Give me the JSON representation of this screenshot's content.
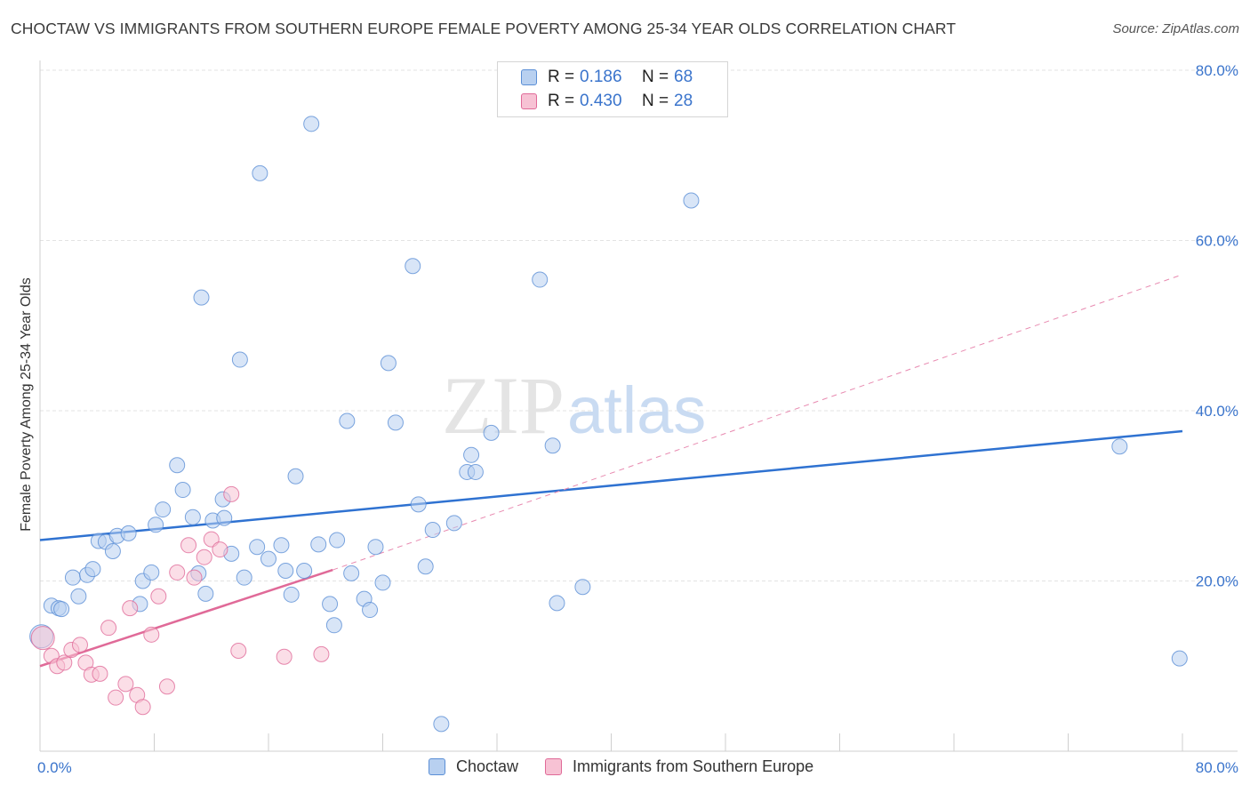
{
  "title": "CHOCTAW VS IMMIGRANTS FROM SOUTHERN EUROPE FEMALE POVERTY AMONG 25-34 YEAR OLDS CORRELATION CHART",
  "source": "Source: ZipAtlas.com",
  "watermark": {
    "zip": "ZIP",
    "atlas": "atlas"
  },
  "legend": {
    "choctaw": {
      "r_label": "R =",
      "r_value": "0.186",
      "n_label": "N =",
      "n_value": "68"
    },
    "immigrants": {
      "r_label": "R =",
      "r_value": "0.430",
      "n_label": "N =",
      "n_value": "28"
    }
  },
  "bottom_legend": {
    "choctaw": "Choctaw",
    "immigrants": "Immigrants from Southern Europe"
  },
  "colors": {
    "choctaw": "#5b8fd6",
    "choctaw_fill": "#b8d0f0",
    "immigrants": "#e06a98",
    "immigrants_fill": "#f7c2d4",
    "grid": "#e3e3e3",
    "tick_text": "#3a74cc"
  },
  "chart_data": {
    "type": "scatter",
    "title": "CHOCTAW VS IMMIGRANTS FROM SOUTHERN EUROPE FEMALE POVERTY AMONG 25-34 YEAR OLDS CORRELATION CHART",
    "xlabel": "",
    "ylabel": "Female Poverty Among 25-34 Year Olds",
    "xlim": [
      0,
      80
    ],
    "ylim": [
      0,
      80
    ],
    "x_tick_labels": [
      "0.0%",
      "80.0%"
    ],
    "y_ticks": [
      20,
      40,
      60,
      80
    ],
    "y_tick_labels": [
      "20.0%",
      "40.0%",
      "60.0%",
      "80.0%"
    ],
    "grid": true,
    "legend_position": "top-center",
    "series": [
      {
        "name": "Choctaw",
        "R": 0.186,
        "N": 68,
        "trendline": {
          "x": [
            0,
            80
          ],
          "y": [
            24.8,
            37.6
          ],
          "style": "solid"
        },
        "points": [
          [
            0.1,
            13.5
          ],
          [
            0.8,
            17.1
          ],
          [
            1.3,
            16.8
          ],
          [
            1.5,
            16.7
          ],
          [
            2.3,
            20.4
          ],
          [
            2.7,
            18.2
          ],
          [
            3.3,
            20.7
          ],
          [
            3.7,
            21.4
          ],
          [
            4.1,
            24.7
          ],
          [
            4.6,
            24.6
          ],
          [
            5.1,
            23.5
          ],
          [
            5.4,
            25.3
          ],
          [
            6.2,
            25.6
          ],
          [
            7.2,
            20.0
          ],
          [
            7.0,
            17.3
          ],
          [
            7.8,
            21.0
          ],
          [
            8.1,
            26.6
          ],
          [
            8.6,
            28.4
          ],
          [
            9.6,
            33.6
          ],
          [
            10.0,
            30.7
          ],
          [
            10.7,
            27.5
          ],
          [
            11.1,
            20.9
          ],
          [
            11.3,
            53.3
          ],
          [
            11.6,
            18.5
          ],
          [
            12.1,
            27.1
          ],
          [
            12.8,
            29.6
          ],
          [
            12.9,
            27.4
          ],
          [
            13.4,
            23.2
          ],
          [
            14.0,
            46.0
          ],
          [
            14.3,
            20.4
          ],
          [
            15.2,
            24.0
          ],
          [
            16.0,
            22.6
          ],
          [
            16.9,
            24.2
          ],
          [
            17.2,
            21.2
          ],
          [
            15.4,
            67.9
          ],
          [
            17.6,
            18.4
          ],
          [
            17.9,
            32.3
          ],
          [
            18.5,
            21.2
          ],
          [
            19.0,
            73.7
          ],
          [
            19.5,
            24.3
          ],
          [
            20.3,
            17.3
          ],
          [
            20.6,
            14.8
          ],
          [
            20.8,
            24.8
          ],
          [
            21.5,
            38.8
          ],
          [
            21.8,
            20.9
          ],
          [
            22.7,
            17.9
          ],
          [
            23.1,
            16.6
          ],
          [
            23.5,
            24.0
          ],
          [
            24.0,
            19.8
          ],
          [
            24.4,
            45.6
          ],
          [
            24.9,
            38.6
          ],
          [
            26.1,
            57.0
          ],
          [
            26.5,
            29.0
          ],
          [
            27.0,
            21.7
          ],
          [
            27.5,
            26.0
          ],
          [
            28.1,
            3.2
          ],
          [
            29.0,
            26.8
          ],
          [
            29.9,
            32.8
          ],
          [
            30.2,
            34.8
          ],
          [
            30.5,
            32.8
          ],
          [
            31.6,
            37.4
          ],
          [
            35.0,
            55.4
          ],
          [
            35.9,
            35.9
          ],
          [
            36.2,
            17.4
          ],
          [
            38.0,
            19.3
          ],
          [
            45.6,
            64.7
          ],
          [
            75.6,
            35.8
          ],
          [
            79.8,
            10.9
          ]
        ]
      },
      {
        "name": "Immigrants from Southern Europe",
        "R": 0.43,
        "N": 28,
        "trendline": {
          "x": [
            0,
            20.5
          ],
          "y": [
            10.0,
            21.3
          ],
          "style": "solid",
          "extension": {
            "x": [
              20.5,
              80
            ],
            "y": [
              21.3,
              56.0
            ],
            "style": "dashed"
          }
        },
        "points": [
          [
            0.2,
            13.3
          ],
          [
            0.8,
            11.2
          ],
          [
            1.2,
            10.0
          ],
          [
            1.7,
            10.4
          ],
          [
            2.2,
            11.9
          ],
          [
            2.8,
            12.5
          ],
          [
            3.2,
            10.4
          ],
          [
            3.6,
            9.0
          ],
          [
            4.2,
            9.1
          ],
          [
            4.8,
            14.5
          ],
          [
            5.3,
            6.3
          ],
          [
            6.0,
            7.9
          ],
          [
            6.3,
            16.8
          ],
          [
            6.8,
            6.6
          ],
          [
            7.2,
            5.2
          ],
          [
            7.8,
            13.7
          ],
          [
            8.3,
            18.2
          ],
          [
            8.9,
            7.6
          ],
          [
            9.6,
            21.0
          ],
          [
            10.4,
            24.2
          ],
          [
            10.8,
            20.4
          ],
          [
            11.5,
            22.8
          ],
          [
            12.0,
            24.9
          ],
          [
            12.6,
            23.7
          ],
          [
            13.4,
            30.2
          ],
          [
            13.9,
            11.8
          ],
          [
            17.1,
            11.1
          ],
          [
            19.7,
            11.4
          ]
        ]
      }
    ]
  }
}
